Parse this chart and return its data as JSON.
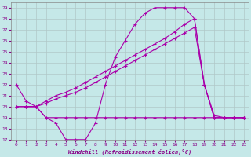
{
  "xlabel": "Windchill (Refroidissement éolien,°C)",
  "bg_color": "#c5e8e8",
  "grid_color": "#b0c8c8",
  "line_color": "#aa00aa",
  "ylim": [
    17,
    29.5
  ],
  "yticks": [
    17,
    18,
    19,
    20,
    21,
    22,
    23,
    24,
    25,
    26,
    27,
    28,
    29
  ],
  "xlim": [
    -0.5,
    23.5
  ],
  "xticks": [
    0,
    1,
    2,
    3,
    4,
    5,
    6,
    7,
    8,
    9,
    10,
    11,
    12,
    13,
    14,
    15,
    16,
    17,
    18,
    19,
    20,
    21,
    22,
    23
  ],
  "line1_x": [
    0,
    1,
    2,
    3,
    4,
    5,
    6,
    7,
    8,
    9,
    10,
    11,
    12,
    13,
    14,
    15,
    16,
    17,
    18,
    19,
    20,
    21,
    22,
    23
  ],
  "line1_y": [
    22,
    20.5,
    20,
    19,
    18.5,
    17,
    17,
    17,
    18.5,
    22,
    24.5,
    26,
    27.5,
    28.5,
    29,
    29,
    29,
    29,
    28,
    22,
    19,
    19,
    19,
    19
  ],
  "line2_x": [
    1,
    2,
    3,
    4,
    5,
    6,
    7,
    8,
    9,
    10,
    11,
    12,
    13,
    14,
    15,
    16,
    17,
    18,
    19,
    20,
    21,
    22,
    23
  ],
  "line2_y": [
    20,
    20,
    19,
    19,
    19,
    19,
    19,
    19,
    19,
    19,
    19,
    19,
    19,
    19,
    19,
    19,
    19,
    19,
    19,
    19,
    19,
    19,
    19
  ],
  "line3_x": [
    0,
    1,
    2,
    3,
    4,
    5,
    6,
    7,
    8,
    9,
    10,
    11,
    12,
    13,
    14,
    15,
    16,
    17,
    18,
    19,
    20,
    21,
    22,
    23
  ],
  "line3_y": [
    20,
    20,
    20,
    20.3,
    20.7,
    21,
    21.3,
    21.7,
    22.2,
    22.7,
    23.2,
    23.7,
    24.2,
    24.7,
    25.2,
    25.7,
    26.2,
    26.7,
    27.2,
    22,
    19.2,
    19,
    19,
    19
  ],
  "line4_x": [
    0,
    1,
    2,
    3,
    4,
    5,
    6,
    7,
    8,
    9,
    10,
    11,
    12,
    13,
    14,
    15,
    16,
    17,
    18,
    19,
    20,
    21,
    22,
    23
  ],
  "line4_y": [
    20,
    20,
    20,
    20.5,
    21,
    21.3,
    21.7,
    22.2,
    22.7,
    23.2,
    23.7,
    24.2,
    24.7,
    25.2,
    25.7,
    26.2,
    26.8,
    27.5,
    28,
    22,
    19,
    19,
    19,
    19
  ]
}
